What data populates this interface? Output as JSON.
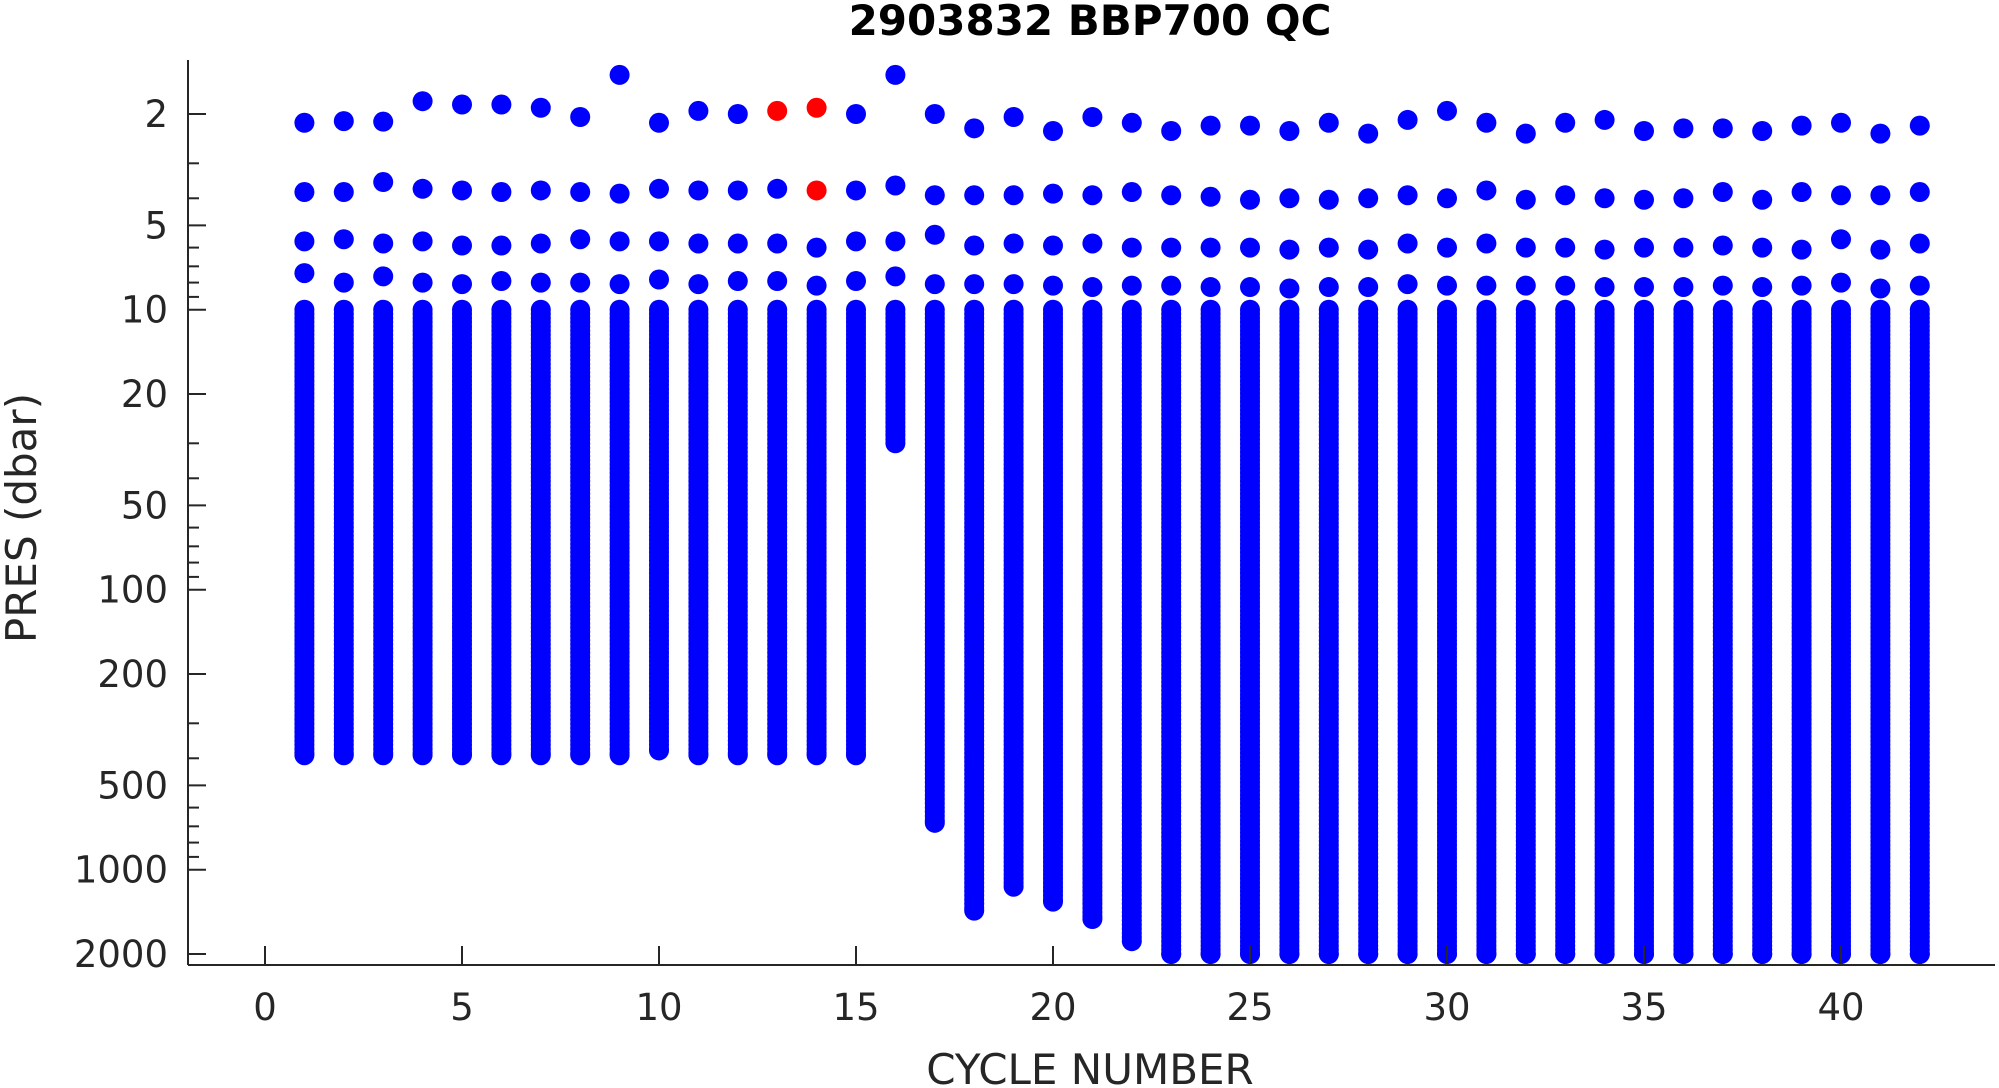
{
  "chart_data": {
    "type": "scatter",
    "title": "2903832 BBP700 QC",
    "xlabel": "CYCLE NUMBER",
    "ylabel": "PRES (dbar)",
    "xlim": [
      -2,
      44
    ],
    "ylim": [
      1.4,
      2150
    ],
    "y_scale": "log",
    "y_reversed": true,
    "grid": false,
    "x_ticks": [
      0,
      5,
      10,
      15,
      20,
      25,
      30,
      35,
      40
    ],
    "y_ticks": [
      2,
      5,
      10,
      20,
      50,
      100,
      200,
      500,
      1000,
      2000
    ],
    "colors": {
      "good": "#0000ff",
      "flagged": "#ff0000",
      "axis": "#262626"
    },
    "profiles": [
      {
        "cycle": 1,
        "p0": 2.15,
        "p1": 3.8,
        "p2": 5.7,
        "p3": 7.4,
        "bottom": 390
      },
      {
        "cycle": 2,
        "p0": 2.12,
        "p1": 3.8,
        "p2": 5.6,
        "p3": 8.0,
        "bottom": 390
      },
      {
        "cycle": 3,
        "p0": 2.13,
        "p1": 3.5,
        "p2": 5.8,
        "p3": 7.6,
        "bottom": 390
      },
      {
        "cycle": 4,
        "p0": 1.8,
        "p1": 3.7,
        "p2": 5.7,
        "p3": 8.0,
        "bottom": 390
      },
      {
        "cycle": 5,
        "p0": 1.85,
        "p1": 3.75,
        "p2": 5.9,
        "p3": 8.1,
        "bottom": 390
      },
      {
        "cycle": 6,
        "p0": 1.85,
        "p1": 3.8,
        "p2": 5.9,
        "p3": 7.9,
        "bottom": 390
      },
      {
        "cycle": 7,
        "p0": 1.9,
        "p1": 3.75,
        "p2": 5.8,
        "p3": 8.0,
        "bottom": 390
      },
      {
        "cycle": 8,
        "p0": 2.05,
        "p1": 3.8,
        "p2": 5.6,
        "p3": 8.0,
        "bottom": 390
      },
      {
        "cycle": 9,
        "p0": 1.45,
        "p1": 3.85,
        "p2": 5.7,
        "p3": 8.1,
        "bottom": 390
      },
      {
        "cycle": 10,
        "p0": 2.15,
        "p1": 3.7,
        "p2": 5.7,
        "p3": 7.8,
        "bottom": 375
      },
      {
        "cycle": 11,
        "p0": 1.95,
        "p1": 3.75,
        "p2": 5.8,
        "p3": 8.1,
        "bottom": 390
      },
      {
        "cycle": 12,
        "p0": 2.0,
        "p1": 3.75,
        "p2": 5.8,
        "p3": 7.9,
        "bottom": 390
      },
      {
        "cycle": 13,
        "p0": 1.95,
        "p1": 3.7,
        "p2": 5.8,
        "p3": 7.9,
        "bottom": 390,
        "flag_p0": true
      },
      {
        "cycle": 14,
        "p0": 1.9,
        "p1": 3.75,
        "p2": 6.0,
        "p3": 8.2,
        "bottom": 390,
        "flag_p0": true,
        "flag_p1": true
      },
      {
        "cycle": 15,
        "p0": 2.0,
        "p1": 3.75,
        "p2": 5.7,
        "p3": 7.9,
        "bottom": 390
      },
      {
        "cycle": 16,
        "p0": 1.45,
        "p1": 3.6,
        "p2": 5.7,
        "p3": 7.6,
        "bottom": 30
      },
      {
        "cycle": 17,
        "p0": 2.0,
        "p1": 3.9,
        "p2": 5.4,
        "p3": 8.1,
        "bottom": 680
      },
      {
        "cycle": 18,
        "p0": 2.25,
        "p1": 3.9,
        "p2": 5.9,
        "p3": 8.1,
        "bottom": 1400
      },
      {
        "cycle": 19,
        "p0": 2.05,
        "p1": 3.9,
        "p2": 5.8,
        "p3": 8.1,
        "bottom": 1150
      },
      {
        "cycle": 20,
        "p0": 2.3,
        "p1": 3.85,
        "p2": 5.9,
        "p3": 8.2,
        "bottom": 1300
      },
      {
        "cycle": 21,
        "p0": 2.05,
        "p1": 3.9,
        "p2": 5.8,
        "p3": 8.3,
        "bottom": 1500
      },
      {
        "cycle": 22,
        "p0": 2.15,
        "p1": 3.8,
        "p2": 6.0,
        "p3": 8.2,
        "bottom": 1800
      },
      {
        "cycle": 23,
        "p0": 2.3,
        "p1": 3.9,
        "p2": 6.0,
        "p3": 8.2,
        "bottom": 2000
      },
      {
        "cycle": 24,
        "p0": 2.2,
        "p1": 3.95,
        "p2": 6.0,
        "p3": 8.3,
        "bottom": 2000
      },
      {
        "cycle": 25,
        "p0": 2.2,
        "p1": 4.05,
        "p2": 6.0,
        "p3": 8.3,
        "bottom": 2000
      },
      {
        "cycle": 26,
        "p0": 2.3,
        "p1": 4.0,
        "p2": 6.1,
        "p3": 8.4,
        "bottom": 2000
      },
      {
        "cycle": 27,
        "p0": 2.15,
        "p1": 4.05,
        "p2": 6.0,
        "p3": 8.3,
        "bottom": 2000
      },
      {
        "cycle": 28,
        "p0": 2.35,
        "p1": 4.0,
        "p2": 6.1,
        "p3": 8.3,
        "bottom": 2000
      },
      {
        "cycle": 29,
        "p0": 2.1,
        "p1": 3.9,
        "p2": 5.8,
        "p3": 8.1,
        "bottom": 2000
      },
      {
        "cycle": 30,
        "p0": 1.95,
        "p1": 4.0,
        "p2": 6.0,
        "p3": 8.2,
        "bottom": 2000
      },
      {
        "cycle": 31,
        "p0": 2.15,
        "p1": 3.75,
        "p2": 5.8,
        "p3": 8.2,
        "bottom": 2000
      },
      {
        "cycle": 32,
        "p0": 2.35,
        "p1": 4.05,
        "p2": 6.0,
        "p3": 8.2,
        "bottom": 2000
      },
      {
        "cycle": 33,
        "p0": 2.15,
        "p1": 3.9,
        "p2": 6.0,
        "p3": 8.2,
        "bottom": 2000
      },
      {
        "cycle": 34,
        "p0": 2.1,
        "p1": 4.0,
        "p2": 6.1,
        "p3": 8.3,
        "bottom": 2000
      },
      {
        "cycle": 35,
        "p0": 2.3,
        "p1": 4.05,
        "p2": 6.0,
        "p3": 8.3,
        "bottom": 2000
      },
      {
        "cycle": 36,
        "p0": 2.25,
        "p1": 4.0,
        "p2": 6.0,
        "p3": 8.3,
        "bottom": 2000
      },
      {
        "cycle": 37,
        "p0": 2.25,
        "p1": 3.8,
        "p2": 5.9,
        "p3": 8.2,
        "bottom": 2000
      },
      {
        "cycle": 38,
        "p0": 2.3,
        "p1": 4.05,
        "p2": 6.0,
        "p3": 8.3,
        "bottom": 2000
      },
      {
        "cycle": 39,
        "p0": 2.2,
        "p1": 3.8,
        "p2": 6.1,
        "p3": 8.2,
        "bottom": 2000
      },
      {
        "cycle": 40,
        "p0": 2.15,
        "p1": 3.9,
        "p2": 5.6,
        "p3": 8.0,
        "bottom": 2000
      },
      {
        "cycle": 41,
        "p0": 2.35,
        "p1": 3.9,
        "p2": 6.1,
        "p3": 8.4,
        "bottom": 2000
      },
      {
        "cycle": 42,
        "p0": 2.2,
        "p1": 3.8,
        "p2": 5.8,
        "p3": 8.2,
        "bottom": 2000
      }
    ]
  }
}
